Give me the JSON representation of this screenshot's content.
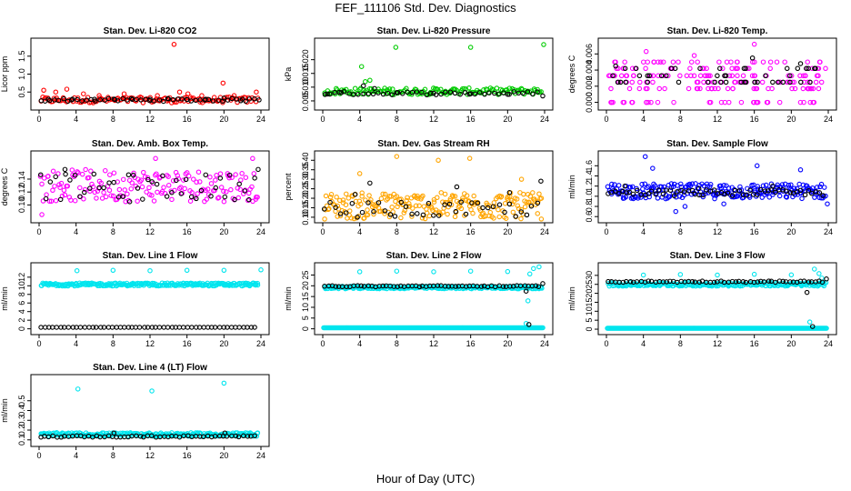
{
  "title": "FEF_111106  Std. Dev. Diagnostics",
  "xlabel": "Hour of Day (UTC)",
  "colors": {
    "red": "#ff0000",
    "green": "#00cc00",
    "magenta": "#ff00ff",
    "orange": "#ffa500",
    "blue": "#0000ff",
    "cyan": "#00e5ee",
    "black": "#000000"
  },
  "chart_data": [
    {
      "type": "scatter",
      "title": "Stan. Dev. Li-820 CO2",
      "ylabel": "Licor ppm",
      "xlim": [
        0,
        24
      ],
      "xticks": [
        "0",
        "4",
        "8",
        "12",
        "16",
        "20",
        "24"
      ],
      "ylim": [
        0.1,
        1.9
      ],
      "yticks": [
        "0.5",
        "1.0",
        "1.5"
      ],
      "series": [
        {
          "color": "red",
          "points": [
            [
              0.5,
              0.55
            ],
            [
              1.8,
              0.5
            ],
            [
              3.0,
              0.58
            ],
            [
              4.8,
              0.45
            ],
            [
              6.5,
              0.4
            ],
            [
              9.2,
              0.45
            ],
            [
              12.8,
              0.4
            ],
            [
              14.6,
              1.83
            ],
            [
              15.2,
              0.5
            ],
            [
              16.1,
              0.45
            ],
            [
              17.6,
              0.4
            ],
            [
              19.9,
              0.75
            ],
            [
              21.1,
              0.4
            ],
            [
              23.5,
              0.5
            ]
          ],
          "band": {
            "y": 0.28,
            "spread": 0.08,
            "density": 130
          }
        },
        {
          "color": "black",
          "points": [
            [
              1.0,
              0.3
            ],
            [
              3.5,
              0.28
            ],
            [
              6.0,
              0.3
            ],
            [
              8.2,
              0.29
            ],
            [
              10.0,
              0.32
            ],
            [
              12.0,
              0.3
            ],
            [
              14.0,
              0.31
            ],
            [
              16.0,
              0.29
            ],
            [
              18.0,
              0.3
            ],
            [
              20.0,
              0.33
            ],
            [
              22.0,
              0.3
            ],
            [
              23.8,
              0.28
            ]
          ],
          "band": {
            "y": 0.28,
            "spread": 0.04,
            "density": 48
          }
        }
      ]
    },
    {
      "type": "scatter",
      "title": "Stan. Dev. Li-820 Pressure",
      "ylabel": "kPa",
      "xlim": [
        0,
        24
      ],
      "xticks": [
        "0",
        "4",
        "8",
        "12",
        "16",
        "20",
        "24"
      ],
      "ylim": [
        0.003,
        0.0265
      ],
      "yticks": [
        "0.005",
        "0.010",
        "0.015",
        "0.020"
      ],
      "series": [
        {
          "color": "green",
          "points": [
            [
              4.2,
              0.0175
            ],
            [
              7.9,
              0.0245
            ],
            [
              16.0,
              0.0245
            ],
            [
              23.9,
              0.0255
            ],
            [
              4.6,
              0.012
            ],
            [
              5.1,
              0.0125
            ]
          ],
          "band": {
            "y": 0.0085,
            "spread": 0.0012,
            "density": 150
          }
        },
        {
          "color": "black",
          "points": [
            [
              0.5,
              0.0075
            ],
            [
              2.0,
              0.008
            ],
            [
              4.4,
              0.0105
            ],
            [
              5.6,
              0.0095
            ],
            [
              8.0,
              0.008
            ],
            [
              12.0,
              0.0078
            ],
            [
              16.0,
              0.0076
            ],
            [
              20.0,
              0.0074
            ],
            [
              23.8,
              0.0068
            ]
          ],
          "band": {
            "y": 0.0078,
            "spread": 0.0006,
            "density": 45
          }
        }
      ]
    },
    {
      "type": "scatter",
      "title": "Stan. Dev. Li-820 Temp.",
      "ylabel": "degrees C",
      "xlim": [
        0,
        24
      ],
      "xticks": [
        "0",
        "4",
        "8",
        "12",
        "16",
        "20",
        "24"
      ],
      "ylim": [
        -0.0005,
        0.0075
      ],
      "yticks": [
        "0.000",
        "0.002",
        "0.004",
        "0.006"
      ],
      "series": [
        {
          "color": "magenta",
          "levels": [
            0.0,
            0.0017,
            0.0025,
            0.0033,
            0.0042,
            0.005
          ],
          "points": [
            [
              4.3,
              0.0063
            ],
            [
              16.0,
              0.0072
            ],
            [
              9.5,
              0.0058
            ]
          ],
          "density": 200
        },
        {
          "color": "black",
          "levels": [
            0.0025,
            0.0033,
            0.0042
          ],
          "points": [
            [
              1.0,
              0.0045
            ],
            [
              15.8,
              0.0055
            ],
            [
              21.0,
              0.0048
            ]
          ],
          "density": 45
        }
      ]
    },
    {
      "type": "scatter",
      "title": "Stan. Dev. Amb. Box Temp.",
      "ylabel": "degrees C",
      "xlim": [
        0,
        24
      ],
      "xticks": [
        "0",
        "4",
        "8",
        "12",
        "16",
        "20",
        "24"
      ],
      "ylim": [
        0.078,
        0.178
      ],
      "yticks": [
        "0.10",
        "0.12",
        "0.14"
      ],
      "series": [
        {
          "color": "magenta",
          "points": [
            [
              0.3,
              0.085
            ],
            [
              12.6,
              0.172
            ],
            [
              23.1,
              0.172
            ]
          ],
          "band": {
            "y": 0.13,
            "spread": 0.025,
            "density": 170
          }
        },
        {
          "color": "black",
          "points": [
            [
              2.8,
              0.155
            ],
            [
              23.7,
              0.155
            ],
            [
              9.8,
              0.105
            ]
          ],
          "band": {
            "y": 0.128,
            "spread": 0.02,
            "density": 45
          }
        }
      ]
    },
    {
      "type": "scatter",
      "title": "Stan. Dev. Gas Stream RH",
      "ylabel": "percent",
      "xlim": [
        0,
        24
      ],
      "xticks": [
        "0",
        "4",
        "8",
        "12",
        "16",
        "20",
        "24"
      ],
      "ylim": [
        0.09,
        0.43
      ],
      "yticks": [
        "0.10",
        "0.15",
        "0.20",
        "0.25",
        "0.30",
        "0.35",
        "0.40"
      ],
      "series": [
        {
          "color": "orange",
          "points": [
            [
              8.0,
              0.42
            ],
            [
              12.5,
              0.4
            ],
            [
              15.9,
              0.41
            ],
            [
              4.0,
              0.33
            ],
            [
              21.5,
              0.3
            ]
          ],
          "band": {
            "y": 0.16,
            "spread": 0.07,
            "density": 230
          }
        },
        {
          "color": "black",
          "points": [
            [
              5.1,
              0.28
            ],
            [
              14.5,
              0.26
            ],
            [
              23.6,
              0.29
            ],
            [
              3.5,
              0.22
            ],
            [
              20.2,
              0.23
            ]
          ],
          "band": {
            "y": 0.14,
            "spread": 0.04,
            "density": 40
          }
        }
      ]
    },
    {
      "type": "scatter",
      "title": "Stan. Dev. Sample Flow",
      "ylabel": "ml/min",
      "xlim": [
        0,
        24
      ],
      "xticks": [
        "0",
        "4",
        "8",
        "12",
        "16",
        "20",
        "24"
      ],
      "ylim": [
        0.55,
        1.82
      ],
      "yticks": [
        "0.6",
        "0.8",
        "1.0",
        "1.2",
        "1.4",
        "1.6"
      ],
      "series": [
        {
          "color": "blue",
          "points": [
            [
              4.2,
              1.78
            ],
            [
              5.0,
              1.55
            ],
            [
              7.5,
              0.7
            ],
            [
              8.5,
              0.8
            ],
            [
              12.7,
              0.85
            ],
            [
              16.3,
              1.6
            ],
            [
              21.0,
              1.52
            ],
            [
              23.9,
              0.85
            ]
          ],
          "band": {
            "y": 1.1,
            "spread": 0.15,
            "density": 230
          }
        },
        {
          "color": "black",
          "points": [
            [
              2.0,
              1.2
            ],
            [
              10.0,
              1.15
            ],
            [
              18.0,
              1.2
            ]
          ],
          "band": {
            "y": 1.07,
            "spread": 0.06,
            "density": 60
          }
        }
      ]
    },
    {
      "type": "scatter",
      "title": "Stan. Dev. Line 1 Flow",
      "ylabel": "ml/min",
      "xlim": [
        0,
        24
      ],
      "xticks": [
        "0",
        "4",
        "8",
        "12",
        "16",
        "20",
        "24"
      ],
      "ylim": [
        -0.5,
        14.5
      ],
      "yticks": [
        "0",
        "2",
        "4",
        "6",
        "8",
        "10",
        "12"
      ],
      "series": [
        {
          "color": "cyan",
          "points": [
            [
              4.1,
              13.5
            ],
            [
              8.0,
              13.6
            ],
            [
              12.0,
              13.5
            ],
            [
              16.0,
              13.6
            ],
            [
              20.0,
              13.6
            ],
            [
              24.0,
              13.7
            ]
          ],
          "band": {
            "y": 10.3,
            "spread": 0.35,
            "density": 260
          }
        },
        {
          "color": "black",
          "points": [],
          "band": {
            "y": 0.35,
            "spread": 0.0,
            "density": 55
          }
        }
      ]
    },
    {
      "type": "scatter",
      "title": "Stan. Dev. Line 2 Flow",
      "ylabel": "ml/min",
      "xlim": [
        0,
        24
      ],
      "xticks": [
        "0",
        "4",
        "8",
        "12",
        "16",
        "20",
        "24"
      ],
      "ylim": [
        -1,
        29
      ],
      "yticks": [
        "0",
        "5",
        "10",
        "15",
        "20",
        "25"
      ],
      "series": [
        {
          "color": "cyan",
          "points": [
            [
              4.0,
              26.5
            ],
            [
              8.0,
              26.8
            ],
            [
              12.0,
              26.5
            ],
            [
              16.0,
              26.8
            ],
            [
              20.0,
              26.6
            ],
            [
              22.4,
              25.5
            ],
            [
              22.8,
              28.0
            ],
            [
              23.4,
              28.8
            ],
            [
              22.2,
              13.0
            ],
            [
              22.0,
              2.5
            ]
          ],
          "band": {
            "y": 19.2,
            "spread": 0.6,
            "density": 260
          },
          "flat": {
            "y": 0.5,
            "density": 260
          }
        },
        {
          "color": "black",
          "points": [
            [
              22.0,
              17.5
            ],
            [
              22.3,
              2.0
            ],
            [
              23.8,
              21.0
            ]
          ],
          "band": {
            "y": 19.8,
            "spread": 0.3,
            "density": 60
          }
        }
      ]
    },
    {
      "type": "scatter",
      "title": "Stan. Dev. Line 3 Flow",
      "ylabel": "ml/min",
      "xlim": [
        0,
        24
      ],
      "xticks": [
        "0",
        "4",
        "8",
        "12",
        "16",
        "20",
        "24"
      ],
      "ylim": [
        -1,
        35
      ],
      "yticks": [
        "0",
        "5",
        "10",
        "15",
        "20",
        "25",
        "30"
      ],
      "series": [
        {
          "color": "cyan",
          "points": [
            [
              4.0,
              30.2
            ],
            [
              8.0,
              30.5
            ],
            [
              12.0,
              30.2
            ],
            [
              16.0,
              30.6
            ],
            [
              20.0,
              30.3
            ],
            [
              22.5,
              33.5
            ],
            [
              23.0,
              31.0
            ],
            [
              23.3,
              28.5
            ],
            [
              22.0,
              4.0
            ]
          ],
          "band": {
            "y": 25.0,
            "spread": 1.0,
            "density": 260
          },
          "flat": {
            "y": 0.5,
            "density": 260
          }
        },
        {
          "color": "black",
          "points": [
            [
              21.7,
              20.5
            ],
            [
              22.3,
              1.5
            ],
            [
              23.8,
              28.0
            ]
          ],
          "band": {
            "y": 26.5,
            "spread": 0.4,
            "density": 60
          }
        }
      ]
    },
    {
      "type": "scatter",
      "title": "Stan. Dev. Line 4 (LT) Flow",
      "ylabel": "ml/min",
      "xlim": [
        0,
        24
      ],
      "xticks": [
        "0",
        "4",
        "8",
        "12",
        "16",
        "20",
        "24"
      ],
      "ylim": [
        0.07,
        0.73
      ],
      "yticks": [
        "0.1",
        "0.2",
        "0.3",
        "0.4",
        "0.5"
      ],
      "series": [
        {
          "color": "cyan",
          "points": [
            [
              4.2,
              0.62
            ],
            [
              12.2,
              0.6
            ],
            [
              20.0,
              0.68
            ]
          ],
          "band": {
            "y": 0.155,
            "spread": 0.018,
            "density": 240
          }
        },
        {
          "color": "black",
          "points": [
            [
              8.1,
              0.17
            ],
            [
              20.1,
              0.17
            ]
          ],
          "band": {
            "y": 0.135,
            "spread": 0.008,
            "density": 55
          }
        }
      ]
    }
  ]
}
